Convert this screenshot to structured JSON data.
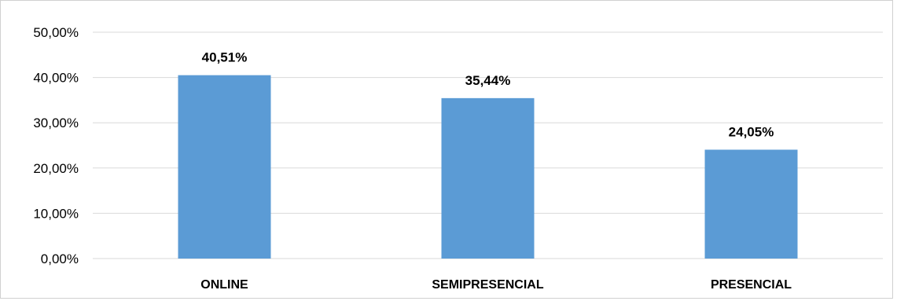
{
  "chart_data": {
    "type": "bar",
    "categories": [
      "ONLINE",
      "SEMIPRESENCIAL",
      "PRESENCIAL"
    ],
    "values": [
      40.51,
      35.44,
      24.05
    ],
    "data_labels": [
      "40,51%",
      "35,44%",
      "24,05%"
    ],
    "y_ticks": [
      0,
      10,
      20,
      30,
      40,
      50
    ],
    "y_tick_labels": [
      "0,00%",
      "10,00%",
      "20,00%",
      "30,00%",
      "40,00%",
      "50,00%"
    ],
    "ylim": [
      0,
      50
    ],
    "grid": true,
    "legend": "none",
    "bar_color": "#5b9bd5",
    "grid_color": "#d9d9d9",
    "title": "",
    "xlabel": "",
    "ylabel": ""
  }
}
